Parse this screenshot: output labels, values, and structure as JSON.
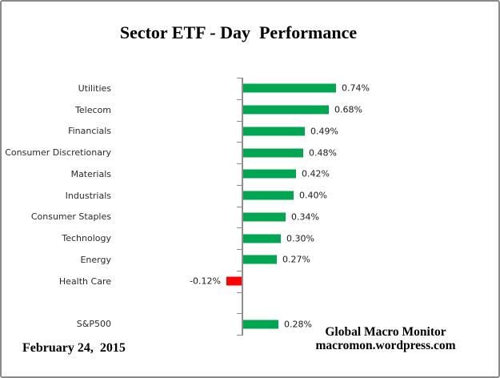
{
  "chart_data": {
    "type": "bar",
    "orientation": "horizontal",
    "title": "Sector ETF - Day  Performance",
    "categories": [
      "Utilities",
      "Telecom",
      "Financials",
      "Consumer Discretionary",
      "Materials",
      "Industrials",
      "Consumer Staples",
      "Technology",
      "Energy",
      "Health Care",
      "",
      "S&P500"
    ],
    "values": [
      0.74,
      0.68,
      0.49,
      0.48,
      0.42,
      0.4,
      0.34,
      0.3,
      0.27,
      -0.12,
      null,
      0.28
    ],
    "value_labels": [
      "0.74%",
      "0.68%",
      "0.49%",
      "0.48%",
      "0.42%",
      "0.40%",
      "0.34%",
      "0.30%",
      "0.27%",
      "-0.12%",
      "",
      "0.28%"
    ],
    "unit": "%",
    "value_axis_visible": false,
    "gridlines": false,
    "xlim": [
      -0.2,
      1.0
    ],
    "colors": {
      "positive_bar": "#00A651",
      "negative_bar": "#FF0000",
      "axis": "#8E8E8E"
    }
  },
  "footer": {
    "date": "February 24,  2015",
    "source_line1": "Global Macro Monitor",
    "source_line2": "macromon.wordpress.com"
  }
}
